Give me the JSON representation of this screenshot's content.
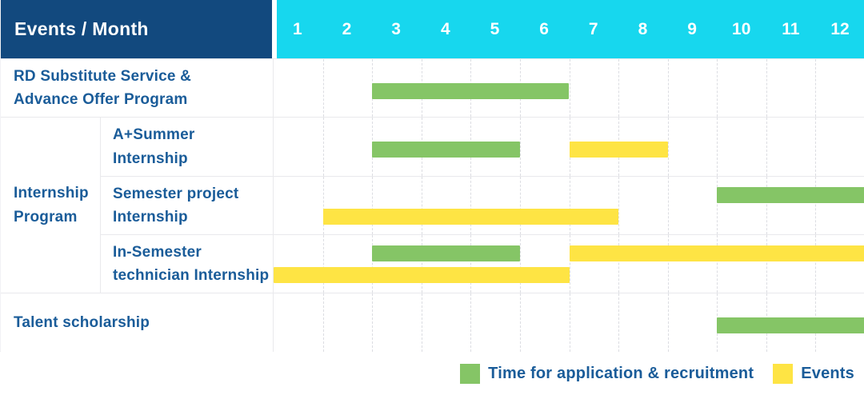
{
  "colors": {
    "navy": "#12497e",
    "cyan": "#17d7ee",
    "green": "#85c566",
    "yellow": "#fee444",
    "label_text": "#1a5c99",
    "grid": "#e9e9ec",
    "grid_dash": "#dcdde2"
  },
  "header": {
    "title": "Events / Month",
    "months": [
      "1",
      "2",
      "3",
      "4",
      "5",
      "6",
      "7",
      "8",
      "9",
      "10",
      "11",
      "12"
    ]
  },
  "legend": {
    "items": [
      {
        "color": "green",
        "label": "Time for application & recruitment"
      },
      {
        "color": "yellow",
        "label": "Events"
      }
    ]
  },
  "chart_data": {
    "type": "bar",
    "subtype": "gantt",
    "title": "Events / Month",
    "x_axis": {
      "label": "Month",
      "ticks": [
        1,
        2,
        3,
        4,
        5,
        6,
        7,
        8,
        9,
        10,
        11,
        12
      ],
      "range": [
        1,
        12
      ]
    },
    "grid": true,
    "legend_position": "bottom-right",
    "series_legend": [
      {
        "label": "Time for application & recruitment",
        "color_key": "green",
        "color": "#85c566"
      },
      {
        "label": "Events",
        "color_key": "yellow",
        "color": "#fee444"
      }
    ],
    "group_label": {
      "label": "Internship Program",
      "label_lines": [
        "Internship",
        "Program"
      ]
    },
    "rows": [
      {
        "group": "",
        "label": "RD Substitute Service & Advance Offer Program",
        "label_lines": [
          "RD Substitute Service &",
          "Advance Offer Program"
        ],
        "bars": [
          {
            "series": "Time for application & recruitment",
            "color": "green",
            "start_month": 3,
            "end_month": 6,
            "lane": "middle"
          }
        ]
      },
      {
        "group": "Internship Program",
        "label": "A+Summer Internship",
        "label_lines": [
          "A+Summer",
          "Internship"
        ],
        "bars": [
          {
            "series": "Time for application & recruitment",
            "color": "green",
            "start_month": 3,
            "end_month": 5,
            "lane": "middle"
          },
          {
            "series": "Events",
            "color": "yellow",
            "start_month": 7,
            "end_month": 8,
            "lane": "middle"
          }
        ]
      },
      {
        "group": "Internship Program",
        "label": "Semester project Internship",
        "label_lines": [
          "Semester project",
          "Internship"
        ],
        "bars": [
          {
            "series": "Time for application & recruitment",
            "color": "green",
            "start_month": 10,
            "end_month": 12,
            "lane": "top"
          },
          {
            "series": "Events",
            "color": "yellow",
            "start_month": 2,
            "end_month": 7,
            "lane": "bottom"
          }
        ]
      },
      {
        "group": "Internship Program",
        "label": "In-Semester technician Internship",
        "label_lines": [
          "In-Semester",
          "technician Internship"
        ],
        "bars": [
          {
            "series": "Time for application & recruitment",
            "color": "green",
            "start_month": 3,
            "end_month": 5,
            "lane": "top"
          },
          {
            "series": "Events",
            "color": "yellow",
            "start_month": 7,
            "end_month": 12,
            "lane": "top"
          },
          {
            "series": "Events",
            "color": "yellow",
            "start_month": 1,
            "end_month": 6,
            "lane": "bottom"
          }
        ]
      },
      {
        "group": "",
        "label": "Talent scholarship",
        "label_lines": [
          "Talent scholarship"
        ],
        "bars": [
          {
            "series": "Time for application & recruitment",
            "color": "green",
            "start_month": 10,
            "end_month": 12,
            "lane": "middle"
          }
        ]
      }
    ]
  }
}
